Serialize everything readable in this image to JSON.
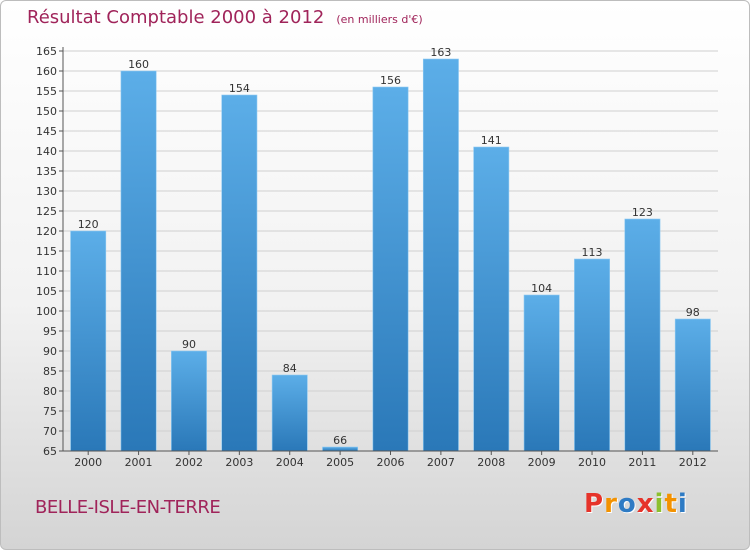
{
  "header": {
    "title": "Résultat Comptable 2000 à 2012",
    "unit_note": "(en milliers d'€)"
  },
  "footer": {
    "town": "BELLE-ISLE-EN-TERRE",
    "brand_letters": [
      "P",
      "r",
      "o",
      "x",
      "i",
      "t",
      "i"
    ],
    "brand_colors": [
      "#e6332a",
      "#f39200",
      "#2e7bc4",
      "#e6332a",
      "#8cbf2e",
      "#f39200",
      "#2e7bc4"
    ]
  },
  "colors": {
    "bar_top": "#5caee8",
    "bar_bottom": "#2a78b8",
    "grid": "#d0d0d0",
    "axis": "#555555",
    "accent": "#a0245a"
  },
  "chart_data": {
    "type": "bar",
    "categories": [
      "2000",
      "2001",
      "2002",
      "2003",
      "2004",
      "2005",
      "2006",
      "2007",
      "2008",
      "2009",
      "2010",
      "2011",
      "2012"
    ],
    "values": [
      120,
      160,
      90,
      154,
      84,
      66,
      156,
      163,
      141,
      104,
      113,
      123,
      98
    ],
    "ylim": [
      65,
      165
    ],
    "yticks": [
      65,
      70,
      75,
      80,
      85,
      90,
      95,
      100,
      105,
      110,
      115,
      120,
      125,
      130,
      135,
      140,
      145,
      150,
      155,
      160,
      165
    ],
    "grid": true,
    "data_labels": true
  }
}
